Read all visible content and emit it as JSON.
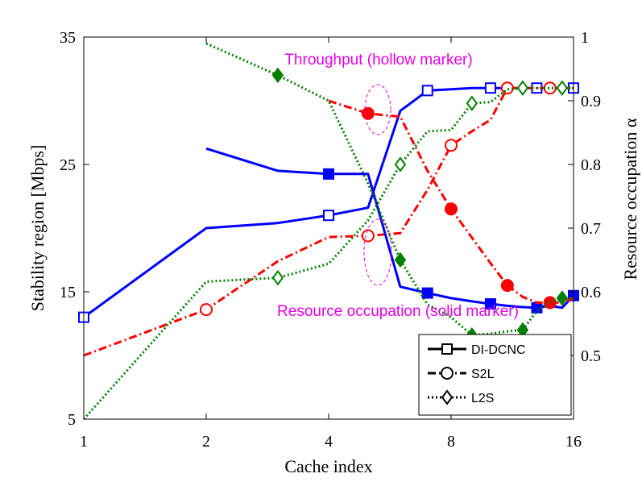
{
  "chart_data": {
    "type": "line",
    "xlabel": "Cache index",
    "ylabel_left": "Stability region [Mbps]",
    "ylabel_right": "Resource occupation α",
    "xlim": [
      1,
      16
    ],
    "ylim_left": [
      5,
      35
    ],
    "ylim_right": [
      0.4,
      1.0
    ],
    "x_ticks": [
      1,
      2,
      4,
      8,
      16
    ],
    "y_left_ticks": [
      5,
      15,
      25,
      35
    ],
    "y_right_ticks": [
      0.5,
      0.6,
      0.7,
      0.8,
      0.9,
      1
    ],
    "grid": false,
    "legend": {
      "position": "bottom-right",
      "entries": [
        "DI-DCNC",
        "S2L",
        "L2S"
      ]
    },
    "colors": {
      "DI-DCNC": "#0000ff",
      "S2L": "#ff0000",
      "L2S": "#008000",
      "annotation": "#e600e6"
    },
    "annotations": [
      {
        "text": "Throughput (hollow marker)",
        "x": 10,
        "y_left": 30.9
      },
      {
        "text": "Resource occupation (solid marker)",
        "x": 10,
        "y_left": 16.3
      }
    ],
    "series": [
      {
        "name": "DI-DCNC",
        "kind": "throughput",
        "axis": "left",
        "style": "solid",
        "marker": "square",
        "filled": false,
        "x": [
          1,
          2,
          3,
          4,
          5,
          6,
          7,
          8,
          9,
          10,
          11,
          12,
          13,
          14,
          15,
          16
        ],
        "values": [
          13.0,
          20.0,
          20.4,
          21.0,
          21.6,
          29.2,
          30.8,
          30.9,
          31.0,
          31.0,
          31.0,
          31.0,
          31.0,
          31.0,
          31.0,
          31.0
        ],
        "marker_at": [
          1,
          4,
          7,
          10,
          13,
          16
        ]
      },
      {
        "name": "S2L",
        "kind": "throughput",
        "axis": "left",
        "style": "dashdot",
        "marker": "circle",
        "filled": false,
        "x": [
          1,
          2,
          3,
          4,
          5,
          6,
          7,
          8,
          9,
          10,
          11,
          12,
          13,
          14,
          15,
          16
        ],
        "values": [
          10.0,
          13.6,
          17.4,
          19.3,
          19.4,
          19.6,
          23.0,
          26.5,
          27.6,
          28.5,
          31.0,
          31.0,
          31.0,
          31.0,
          31.0,
          31.0
        ],
        "marker_at": [
          2,
          5,
          8,
          11,
          14
        ]
      },
      {
        "name": "L2S",
        "kind": "throughput",
        "axis": "left",
        "style": "dotted",
        "marker": "diamond",
        "filled": false,
        "x": [
          1,
          2,
          3,
          4,
          5,
          6,
          7,
          8,
          9,
          10,
          11,
          12,
          13,
          14,
          15,
          16
        ],
        "values": [
          5.0,
          15.8,
          16.1,
          17.2,
          20.6,
          25.0,
          27.6,
          27.7,
          29.8,
          29.9,
          30.9,
          31.0,
          31.0,
          31.0,
          31.0,
          31.0
        ],
        "marker_at": [
          3,
          6,
          9,
          12,
          15
        ]
      },
      {
        "name": "DI-DCNC",
        "kind": "resource",
        "axis": "right",
        "style": "solid",
        "marker": "square",
        "filled": true,
        "x": [
          2,
          3,
          4,
          5,
          6,
          7,
          8,
          9,
          10,
          11,
          12,
          13,
          14,
          15,
          16
        ],
        "values": [
          0.825,
          0.79,
          0.785,
          0.785,
          0.608,
          0.598,
          0.59,
          0.585,
          0.581,
          0.578,
          0.576,
          0.575,
          0.578,
          0.575,
          0.594
        ],
        "marker_at": [
          4,
          7,
          10,
          13,
          16
        ]
      },
      {
        "name": "S2L",
        "kind": "resource",
        "axis": "right",
        "style": "dashdot",
        "marker": "circle",
        "filled": true,
        "x": [
          4,
          5,
          6,
          7,
          8,
          9,
          10,
          11,
          12,
          13,
          14,
          15,
          16
        ],
        "values": [
          0.9,
          0.88,
          0.875,
          0.79,
          0.73,
          0.685,
          0.645,
          0.61,
          0.592,
          0.583,
          0.583,
          0.583,
          0.59
        ],
        "marker_at": [
          5,
          8,
          11,
          14
        ]
      },
      {
        "name": "L2S",
        "kind": "resource",
        "axis": "right",
        "style": "dotted",
        "marker": "diamond",
        "filled": true,
        "x": [
          2,
          3,
          4,
          5,
          6,
          7,
          8,
          9,
          10,
          11,
          12,
          13,
          14,
          15,
          16
        ],
        "values": [
          0.99,
          0.94,
          0.9,
          0.77,
          0.65,
          0.58,
          0.56,
          0.532,
          0.534,
          0.538,
          0.54,
          0.57,
          0.585,
          0.59,
          0.59
        ],
        "marker_at": [
          3,
          6,
          9,
          12,
          15
        ]
      }
    ]
  }
}
